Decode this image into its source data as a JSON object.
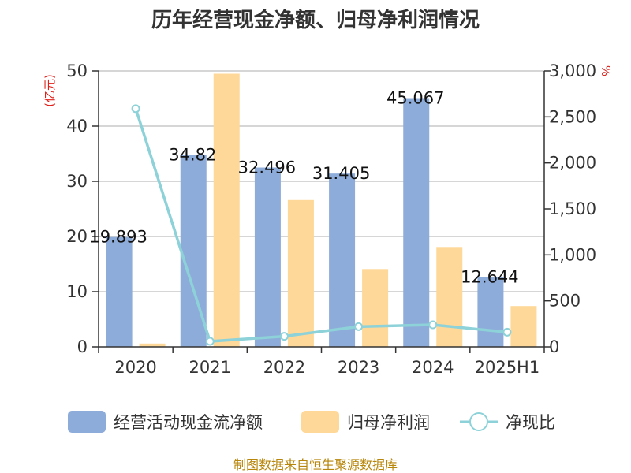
{
  "chart_data": {
    "type": "bar",
    "title": "历年经营现金净额、归母净利润情况",
    "categories": [
      "2020",
      "2021",
      "2022",
      "2023",
      "2024",
      "2025H1"
    ],
    "left_axis": {
      "unit": "(亿元)",
      "range": [
        0,
        50
      ],
      "ticks": [
        "0",
        "10",
        "20",
        "30",
        "40",
        "50"
      ]
    },
    "right_axis": {
      "unit": "%",
      "range": [
        0,
        3000
      ],
      "ticks": [
        "0",
        "500",
        "1,000",
        "1,500",
        "2,000",
        "2,500",
        "3,000"
      ]
    },
    "series": [
      {
        "name": "经营活动现金流净额",
        "type": "bar",
        "axis": "left",
        "color": "#8eacd9",
        "values": [
          19.893,
          34.82,
          32.496,
          31.405,
          45.067,
          12.644
        ],
        "labels": [
          "19.893",
          "34.82",
          "32.496",
          "31.405",
          "45.067",
          "12.644"
        ]
      },
      {
        "name": "归母净利润",
        "type": "bar",
        "axis": "left",
        "color": "#fed898",
        "values": [
          0.6,
          49.5,
          26.6,
          14.1,
          18.1,
          7.4
        ]
      },
      {
        "name": "净现比",
        "type": "line",
        "axis": "right",
        "color": "#8dd2d8",
        "values": [
          2590,
          60,
          115,
          220,
          240,
          160
        ]
      }
    ],
    "grid": true,
    "legend": "bottom"
  },
  "source": "制图数据来自恒生聚源数据库"
}
